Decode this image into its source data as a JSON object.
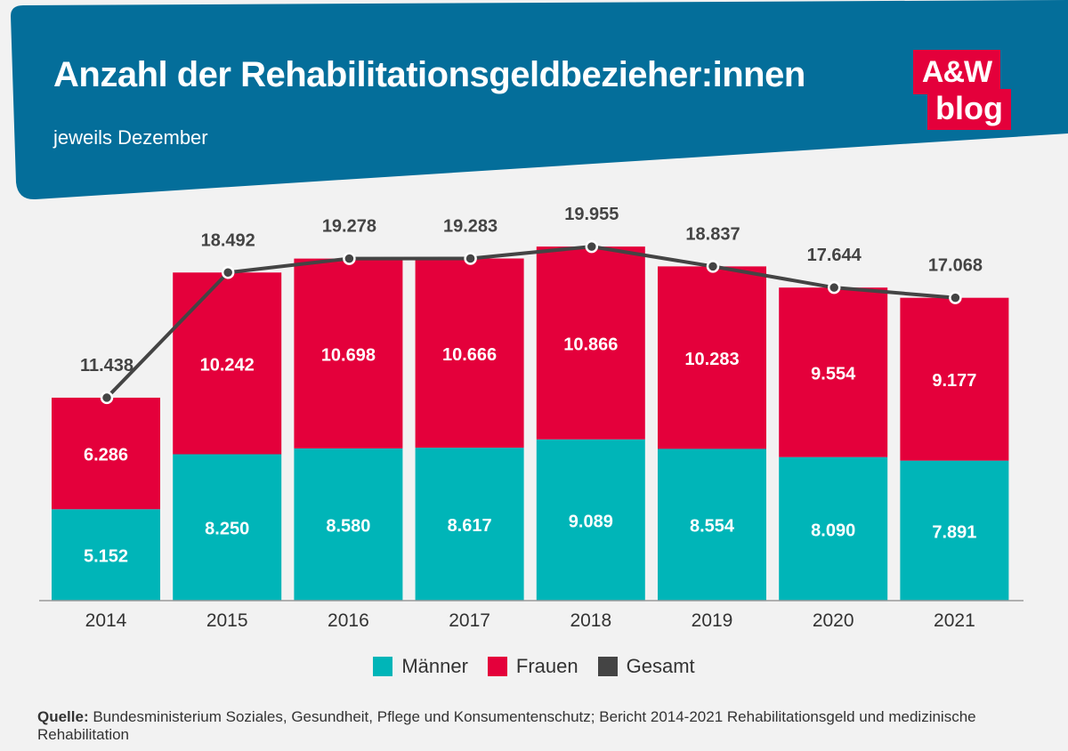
{
  "header": {
    "title": "Anzahl der Rehabilitationsgeldbezieher:innen",
    "subtitle": "jeweils Dezember",
    "logo_top": "A&W",
    "logo_bottom": "blog"
  },
  "colors": {
    "header_bg": "#046e9a",
    "maenner": "#00b5b8",
    "frauen": "#e4003b",
    "gesamt": "#444444",
    "logo": "#e4003b"
  },
  "chart_data": {
    "type": "bar",
    "stacked": true,
    "categories": [
      "2014",
      "2015",
      "2016",
      "2017",
      "2018",
      "2019",
      "2020",
      "2021"
    ],
    "series": [
      {
        "name": "Männer",
        "values": [
          5152,
          8250,
          8580,
          8617,
          9089,
          8554,
          8090,
          7891
        ],
        "labels": [
          "5.152",
          "8.250",
          "8.580",
          "8.617",
          "9.089",
          "8.554",
          "8.090",
          "7.891"
        ]
      },
      {
        "name": "Frauen",
        "values": [
          6286,
          10242,
          10698,
          10666,
          10866,
          10283,
          9554,
          9177
        ],
        "labels": [
          "6.286",
          "10.242",
          "10.698",
          "10.666",
          "10.866",
          "10.283",
          "9.554",
          "9.177"
        ]
      }
    ],
    "line": {
      "name": "Gesamt",
      "values": [
        11438,
        18492,
        19278,
        19283,
        19955,
        18837,
        17644,
        17068
      ],
      "labels": [
        "11.438",
        "18.492",
        "19.278",
        "19.283",
        "19.955",
        "18.837",
        "17.644",
        "17.068"
      ]
    },
    "ylim": [
      0,
      20000
    ],
    "legend": [
      "Männer",
      "Frauen",
      "Gesamt"
    ],
    "legend_position": "bottom"
  },
  "source": {
    "label": "Quelle:",
    "text": " Bundesministerium Soziales, Gesundheit, Pflege und Konsumentenschutz; Bericht 2014-2021 Rehabilitationsgeld und medizinische Rehabilitation"
  }
}
